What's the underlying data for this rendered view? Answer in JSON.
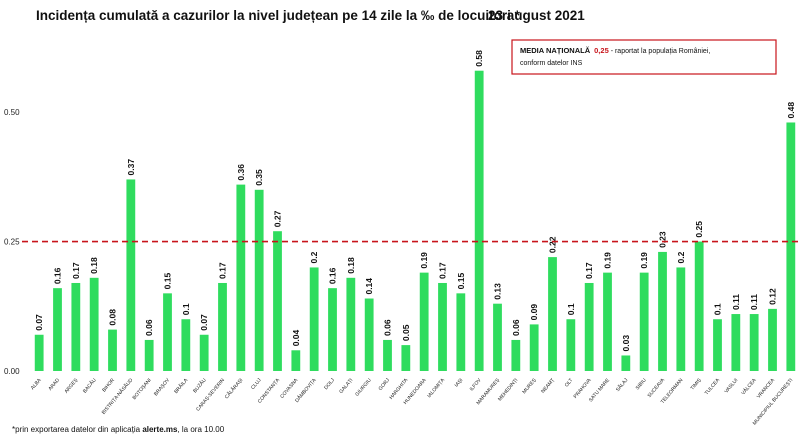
{
  "chart_data": {
    "type": "bar",
    "title": "Incidența cumulată a cazurilor la nivel județean pe 14 zile la ‰ de locuitori *",
    "date": "23 august 2021",
    "xlabel": "",
    "ylabel": "",
    "ylim": [
      0,
      0.62
    ],
    "yticks": [
      "0.00",
      "0.25",
      "0.50"
    ],
    "ytick_values": [
      0,
      0.25,
      0.5
    ],
    "grid": false,
    "bar_color": "#2fdc5e",
    "reference_line": {
      "value": 0.25,
      "color": "#c8141b",
      "style": "dashed"
    },
    "categories": [
      "ALBA",
      "ARAD",
      "ARGEȘ",
      "BACĂU",
      "BIHOR",
      "BISTRIȚA-NĂSĂUD",
      "BOTOȘANI",
      "BRAȘOV",
      "BRĂILA",
      "BUZĂU",
      "CARAȘ-SEVERIN",
      "CĂLĂRAȘI",
      "CLUJ",
      "CONSTANȚA",
      "COVASNA",
      "DÂMBOVIȚA",
      "DOLJ",
      "GALAȚI",
      "GIURGIU",
      "GORJ",
      "HARGHITA",
      "HUNEDOARA",
      "IALOMIȚA",
      "IAȘI",
      "ILFOV",
      "MARAMUREȘ",
      "MEHEDINȚI",
      "MUREȘ",
      "NEAMȚ",
      "OLT",
      "PRAHOVA",
      "SATU MARE",
      "SĂLAJ",
      "SIBIU",
      "SUCEAVA",
      "TELEORMAN",
      "TIMIȘ",
      "TULCEA",
      "VASLUI",
      "VÂLCEA",
      "VRANCEA",
      "MUNICIPIUL BUCUREȘTI"
    ],
    "values": [
      0.07,
      0.16,
      0.17,
      0.18,
      0.08,
      0.37,
      0.06,
      0.15,
      0.1,
      0.07,
      0.17,
      0.36,
      0.35,
      0.27,
      0.04,
      0.2,
      0.16,
      0.18,
      0.14,
      0.06,
      0.05,
      0.19,
      0.17,
      0.15,
      0.58,
      0.13,
      0.06,
      0.09,
      0.22,
      0.1,
      0.17,
      0.19,
      0.03,
      0.19,
      0.23,
      0.2,
      0.25,
      0.1,
      0.11,
      0.11,
      0.12,
      0.48
    ],
    "value_labels": [
      "0.07",
      "0.16",
      "0.17",
      "0.18",
      "0.08",
      "0.37",
      "0.06",
      "0.15",
      "0.1",
      "0.07",
      "0.17",
      "0.36",
      "0.35",
      "0.27",
      "0.04",
      "0.2",
      "0.16",
      "0.18",
      "0.14",
      "0.06",
      "0.05",
      "0.19",
      "0.17",
      "0.15",
      "0.58",
      "0.13",
      "0.06",
      "0.09",
      "0.22",
      "0.1",
      "0.17",
      "0.19",
      "0.03",
      "0.19",
      "0.23",
      "0.2",
      "0.25",
      "0.1",
      "0.11",
      "0.11",
      "0.12",
      "0.48"
    ],
    "annotation_box": {
      "bold_text": "MEDIA NAȚIONALĂ",
      "value": "0,25",
      "rest_line1": " - raportat la populația României,",
      "line2": "conform datelor INS",
      "border_color": "#c8141b"
    },
    "footnote_prefix": "*prin exportarea datelor din aplicația ",
    "footnote_bold": "alerte.ms",
    "footnote_suffix": ", la ora 10.00"
  }
}
